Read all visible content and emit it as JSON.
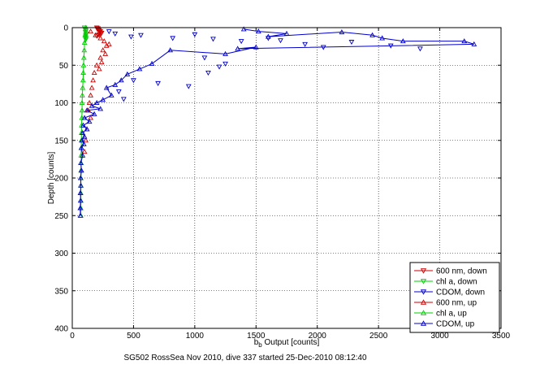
{
  "chart_data": {
    "type": "scatter",
    "xlabel_base": "b",
    "xlabel_sub": "b",
    "xlabel_rest": " Output [counts]",
    "ylabel": "Depth [counts]",
    "caption": "SG502 RossSea Nov 2010, dive 337 started 25-Dec-2010 08:12:40",
    "xlim": [
      0,
      3500
    ],
    "ylim": [
      0,
      400
    ],
    "y_reversed": true,
    "xticks": [
      0,
      500,
      1000,
      1500,
      2000,
      2500,
      3000,
      3500
    ],
    "yticks": [
      0,
      50,
      100,
      150,
      200,
      250,
      300,
      350,
      400
    ],
    "grid": "dotted",
    "legend_position": "bottom-right",
    "series": [
      {
        "name": "600 nm, down",
        "color": "#cc0000",
        "marker": "triangle-down",
        "line": true,
        "points": [
          [
            200,
            0
          ],
          [
            210,
            1
          ],
          [
            205,
            2
          ],
          [
            215,
            3
          ],
          [
            220,
            4
          ],
          [
            230,
            5
          ],
          [
            225,
            6
          ],
          [
            240,
            7
          ],
          [
            235,
            8
          ],
          [
            220,
            9
          ],
          [
            210,
            10
          ],
          [
            200,
            11
          ]
        ]
      },
      {
        "name": "chl a, down",
        "color": "#00cc00",
        "marker": "triangle-down",
        "line": true,
        "points": [
          [
            100,
            0
          ],
          [
            105,
            2
          ],
          [
            110,
            4
          ],
          [
            108,
            6
          ],
          [
            112,
            8
          ],
          [
            110,
            10
          ],
          [
            108,
            12
          ],
          [
            112,
            14
          ],
          [
            110,
            16
          ]
        ]
      },
      {
        "name": "CDOM, down",
        "color": "#0000cc",
        "marker": "triangle-down",
        "line": false,
        "points": [
          [
            300,
            5
          ],
          [
            350,
            8
          ],
          [
            480,
            12
          ],
          [
            560,
            10
          ],
          [
            820,
            14
          ],
          [
            1000,
            9
          ],
          [
            1150,
            15
          ],
          [
            1380,
            18
          ],
          [
            1600,
            14
          ],
          [
            1700,
            17
          ],
          [
            1900,
            22
          ],
          [
            2050,
            26
          ],
          [
            2280,
            19
          ],
          [
            2600,
            24
          ],
          [
            2840,
            28
          ],
          [
            1080,
            40
          ],
          [
            1200,
            52
          ],
          [
            1250,
            48
          ],
          [
            1110,
            60
          ],
          [
            950,
            78
          ],
          [
            700,
            74
          ],
          [
            500,
            70
          ],
          [
            420,
            95
          ],
          [
            380,
            85
          ]
        ]
      },
      {
        "name": "600 nm, up",
        "color": "#cc0000",
        "marker": "triangle-up",
        "line": false,
        "points": [
          [
            150,
            5
          ],
          [
            190,
            10
          ],
          [
            230,
            14
          ],
          [
            260,
            18
          ],
          [
            280,
            24
          ],
          [
            300,
            22
          ],
          [
            250,
            30
          ],
          [
            270,
            35
          ],
          [
            230,
            40
          ],
          [
            240,
            46
          ],
          [
            200,
            50
          ],
          [
            220,
            55
          ],
          [
            180,
            60
          ],
          [
            170,
            70
          ],
          [
            160,
            80
          ],
          [
            150,
            90
          ],
          [
            140,
            100
          ],
          [
            130,
            110
          ],
          [
            150,
            120
          ],
          [
            120,
            135
          ],
          [
            110,
            150
          ],
          [
            100,
            165
          ]
        ]
      },
      {
        "name": "chl a, up",
        "color": "#00cc00",
        "marker": "triangle-up",
        "line": true,
        "points": [
          [
            110,
            0
          ],
          [
            105,
            10
          ],
          [
            100,
            20
          ],
          [
            98,
            30
          ],
          [
            95,
            40
          ],
          [
            92,
            50
          ],
          [
            90,
            60
          ],
          [
            88,
            70
          ],
          [
            85,
            80
          ],
          [
            82,
            90
          ],
          [
            80,
            100
          ],
          [
            80,
            110
          ],
          [
            78,
            120
          ],
          [
            76,
            130
          ],
          [
            75,
            140
          ],
          [
            74,
            150
          ],
          [
            73,
            160
          ],
          [
            72,
            170
          ],
          [
            72,
            180
          ],
          [
            71,
            190
          ],
          [
            70,
            200
          ],
          [
            70,
            210
          ],
          [
            70,
            220
          ],
          [
            70,
            230
          ],
          [
            70,
            240
          ],
          [
            70,
            250
          ]
        ]
      },
      {
        "name": "CDOM, up",
        "color": "#0000cc",
        "marker": "triangle-up",
        "line": true,
        "points": [
          [
            1400,
            2
          ],
          [
            1520,
            5
          ],
          [
            1750,
            8
          ],
          [
            1600,
            12
          ],
          [
            2200,
            6
          ],
          [
            2450,
            10
          ],
          [
            2530,
            14
          ],
          [
            2700,
            18
          ],
          [
            3200,
            18
          ],
          [
            3280,
            22
          ],
          [
            1350,
            28
          ],
          [
            1500,
            26
          ],
          [
            1250,
            35
          ],
          [
            800,
            30
          ],
          [
            650,
            48
          ],
          [
            550,
            55
          ],
          [
            450,
            62
          ],
          [
            400,
            70
          ],
          [
            350,
            76
          ],
          [
            280,
            80
          ],
          [
            320,
            90
          ],
          [
            250,
            96
          ],
          [
            200,
            100
          ],
          [
            160,
            104
          ],
          [
            230,
            108
          ],
          [
            120,
            110
          ],
          [
            180,
            115
          ],
          [
            100,
            120
          ],
          [
            140,
            125
          ],
          [
            90,
            130
          ],
          [
            120,
            135
          ],
          [
            85,
            140
          ],
          [
            100,
            145
          ],
          [
            80,
            150
          ],
          [
            95,
            155
          ],
          [
            75,
            160
          ],
          [
            85,
            170
          ],
          [
            70,
            180
          ],
          [
            75,
            190
          ],
          [
            68,
            200
          ],
          [
            70,
            210
          ],
          [
            66,
            220
          ],
          [
            68,
            230
          ],
          [
            65,
            240
          ],
          [
            66,
            250
          ]
        ]
      }
    ]
  }
}
